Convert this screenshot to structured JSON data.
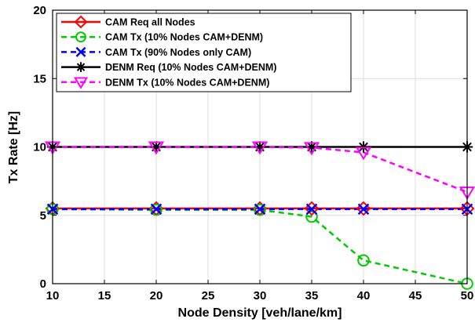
{
  "chart_data": {
    "type": "line",
    "xlabel": "Node Density [veh/lane/km]",
    "ylabel": "Tx Rate [Hz]",
    "xlim": [
      10,
      50
    ],
    "ylim": [
      0,
      20
    ],
    "xticks": [
      "10",
      "15",
      "20",
      "25",
      "30",
      "35",
      "40",
      "45",
      "50"
    ],
    "yticks": [
      "0",
      "5",
      "10",
      "15",
      "20"
    ],
    "grid": true,
    "legend_position": "top-left",
    "x": [
      10,
      20,
      30,
      35,
      40,
      50
    ],
    "series": [
      {
        "name": "CAM Req all Nodes",
        "color": "#ff0000",
        "dash": "solid",
        "marker": "diamond",
        "values": [
          5.5,
          5.5,
          5.5,
          5.5,
          5.5,
          5.5
        ]
      },
      {
        "name": "CAM Tx (10% Nodes CAM+DENM)",
        "color": "#00cc00",
        "dash": "dashed",
        "marker": "circle",
        "values": [
          5.45,
          5.4,
          5.4,
          4.9,
          1.7,
          0.0
        ]
      },
      {
        "name": "CAM Tx (90% Nodes only CAM)",
        "color": "#0000ff",
        "dash": "dashed",
        "marker": "x",
        "values": [
          5.45,
          5.45,
          5.45,
          5.45,
          5.45,
          5.45
        ]
      },
      {
        "name": "DENM Req (10% Nodes CAM+DENM)",
        "color": "#000000",
        "dash": "solid",
        "marker": "asterisk",
        "values": [
          10.0,
          10.0,
          10.0,
          10.0,
          10.0,
          10.0
        ]
      },
      {
        "name": "DENM Tx (10% Nodes CAM+DENM)",
        "color": "#ff00ff",
        "dash": "dashed",
        "marker": "triangle-down",
        "values": [
          10.0,
          10.0,
          10.0,
          9.95,
          9.6,
          6.7
        ]
      }
    ]
  }
}
